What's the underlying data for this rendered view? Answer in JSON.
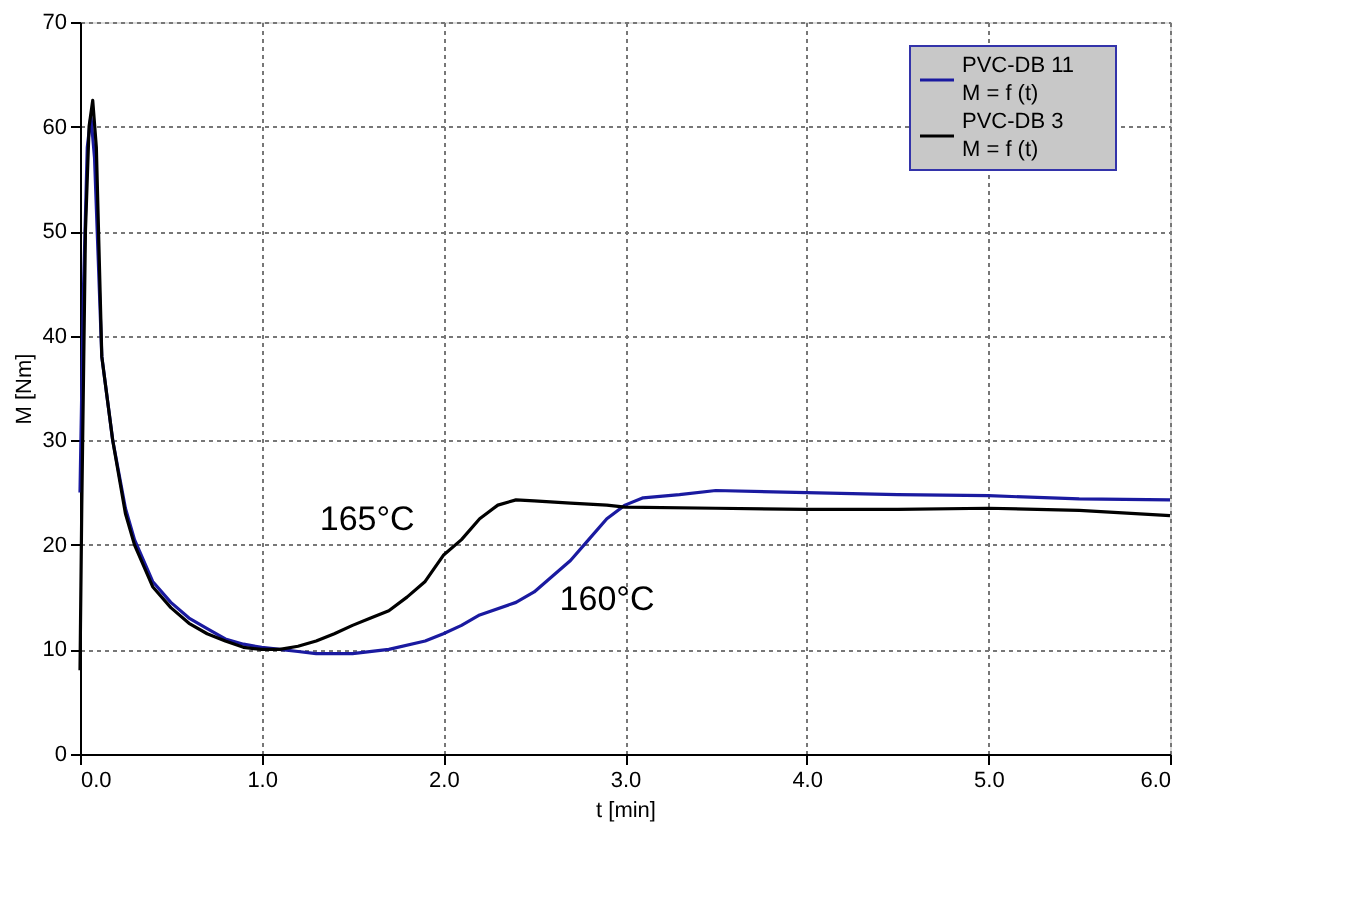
{
  "chart_data": {
    "type": "line",
    "xlabel": "t [min]",
    "ylabel": "M [Nm]",
    "xlim": [
      0,
      6
    ],
    "xticks": [
      {
        "value": 0,
        "label": "0.0"
      },
      {
        "value": 1,
        "label": "1.0"
      },
      {
        "value": 2,
        "label": "2.0"
      },
      {
        "value": 3,
        "label": "3.0"
      },
      {
        "value": 4,
        "label": "4.0"
      },
      {
        "value": 5,
        "label": "5.0"
      },
      {
        "value": 6,
        "label": "6.0"
      }
    ],
    "ylim": [
      0,
      70
    ],
    "yticks": [
      0,
      10,
      20,
      30,
      40,
      50,
      60,
      70
    ],
    "grid": true,
    "legend": "top right",
    "line_style": "solid",
    "marker": "none",
    "series": [
      {
        "name": "PVC-DB 11\nM = f (t)",
        "color": "#1a1aa0",
        "x": [
          0,
          0.02,
          0.04,
          0.06,
          0.08,
          0.12,
          0.18,
          0.25,
          0.3,
          0.4,
          0.5,
          0.6,
          0.7,
          0.8,
          0.9,
          1.0,
          1.1,
          1.2,
          1.3,
          1.5,
          1.7,
          1.9,
          2.0,
          2.1,
          2.2,
          2.4,
          2.5,
          2.6,
          2.7,
          2.8,
          2.9,
          3.0,
          3.1,
          3.3,
          3.5,
          4.0,
          4.5,
          5.0,
          5.5,
          6.0
        ],
        "values": [
          25,
          45,
          58,
          61,
          57,
          38,
          30,
          23.5,
          20.5,
          16.5,
          14.5,
          13,
          12,
          11,
          10.5,
          10.2,
          10,
          9.8,
          9.6,
          9.6,
          10,
          10.8,
          11.5,
          12.3,
          13.3,
          14.5,
          15.5,
          17,
          18.5,
          20.5,
          22.5,
          23.8,
          24.5,
          24.8,
          25.2,
          25,
          24.8,
          24.7,
          24.4,
          24.3
        ]
      },
      {
        "name": "PVC-DB 3\nM = f (t)",
        "color": "#000000",
        "x": [
          0,
          0.01,
          0.03,
          0.05,
          0.07,
          0.09,
          0.12,
          0.18,
          0.25,
          0.3,
          0.4,
          0.5,
          0.6,
          0.7,
          0.8,
          0.9,
          1.0,
          1.1,
          1.2,
          1.3,
          1.4,
          1.5,
          1.6,
          1.7,
          1.8,
          1.9,
          2.0,
          2.1,
          2.2,
          2.3,
          2.4,
          2.5,
          2.7,
          2.9,
          3.0,
          3.5,
          4.0,
          4.5,
          5.0,
          5.5,
          6.0
        ],
        "values": [
          8,
          24,
          50,
          60,
          62.5,
          58,
          38,
          30,
          23,
          20,
          16,
          14,
          12.5,
          11.5,
          10.8,
          10.2,
          10,
          10,
          10.3,
          10.8,
          11.5,
          12.3,
          13,
          13.7,
          15,
          16.5,
          19,
          20.5,
          22.5,
          23.8,
          24.3,
          24.2,
          24,
          23.8,
          23.6,
          23.5,
          23.4,
          23.4,
          23.5,
          23.3,
          22.8
        ]
      }
    ],
    "annotations": [
      "165°C",
      "160°C"
    ]
  }
}
